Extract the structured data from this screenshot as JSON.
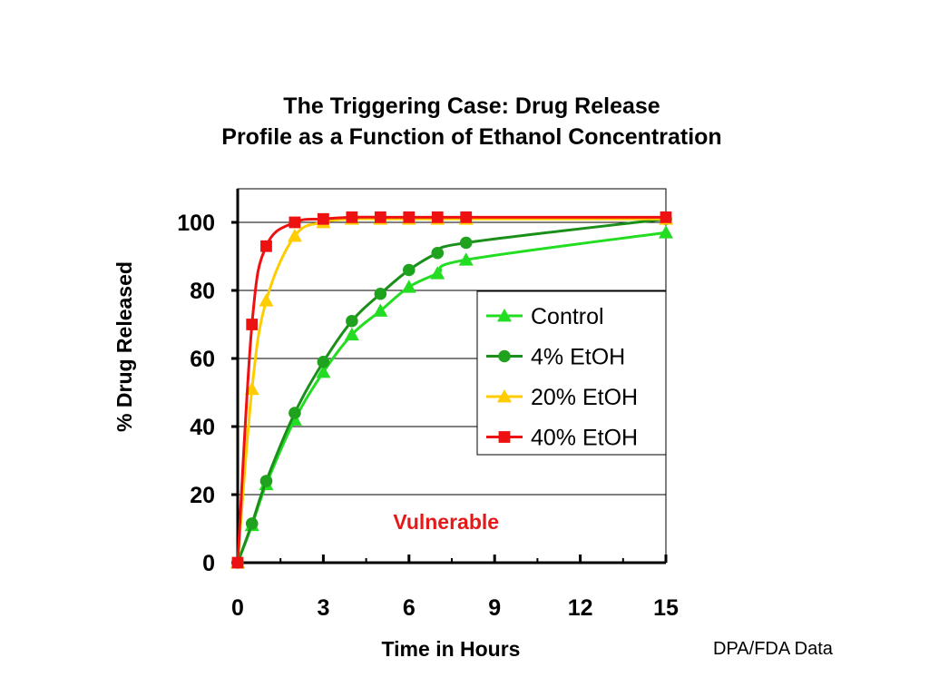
{
  "slide": {
    "credit": "DPA/FDA Data"
  },
  "chart_data": {
    "type": "line",
    "title": "The Triggering Case: Drug Release",
    "subtitle": "Profile as a Function of Ethanol Concentration",
    "xlabel": "Time in Hours",
    "ylabel": "% Drug Released",
    "xlim": [
      0,
      15
    ],
    "ylim": [
      0,
      110
    ],
    "xticks": [
      0,
      3,
      6,
      9,
      12,
      15
    ],
    "yticks": [
      0,
      20,
      40,
      60,
      80,
      100
    ],
    "grid": "horizontal",
    "legend_position": "right",
    "annotation": {
      "text": "Vulnerable",
      "x": 7.3,
      "y": 12,
      "color": "#e41a1a"
    },
    "series": [
      {
        "name": "Control",
        "color": "#22dd22",
        "line_color": "#22dd22",
        "marker": "triangle",
        "x": [
          0,
          0.5,
          1,
          2,
          3,
          4,
          5,
          6,
          7,
          8,
          15
        ],
        "y": [
          0,
          11,
          23,
          42,
          56,
          67,
          74,
          81,
          85,
          89,
          97
        ]
      },
      {
        "name": "4% EtOH",
        "color": "#1fa31f",
        "line_color": "#1a8f1a",
        "marker": "circle",
        "x": [
          0,
          0.5,
          1,
          2,
          3,
          4,
          5,
          6,
          7,
          8,
          15
        ],
        "y": [
          0,
          11.5,
          24,
          44,
          59,
          71,
          79,
          86,
          91,
          94,
          101
        ]
      },
      {
        "name": "20% EtOH",
        "color": "#ffcc00",
        "line_color": "#ffcc00",
        "marker": "triangle",
        "x": [
          0,
          0.5,
          1,
          2,
          3,
          4,
          5,
          6,
          7,
          8,
          15
        ],
        "y": [
          0,
          51,
          77,
          96,
          100,
          101,
          101,
          101,
          101,
          101,
          101
        ]
      },
      {
        "name": "40% EtOH",
        "color": "#ee1111",
        "line_color": "#ee1111",
        "marker": "square",
        "x": [
          0,
          0.5,
          1,
          2,
          3,
          4,
          5,
          6,
          7,
          8,
          15
        ],
        "y": [
          0,
          70,
          93,
          100,
          101,
          101.5,
          101.5,
          101.5,
          101.5,
          101.5,
          101.5
        ]
      }
    ]
  }
}
